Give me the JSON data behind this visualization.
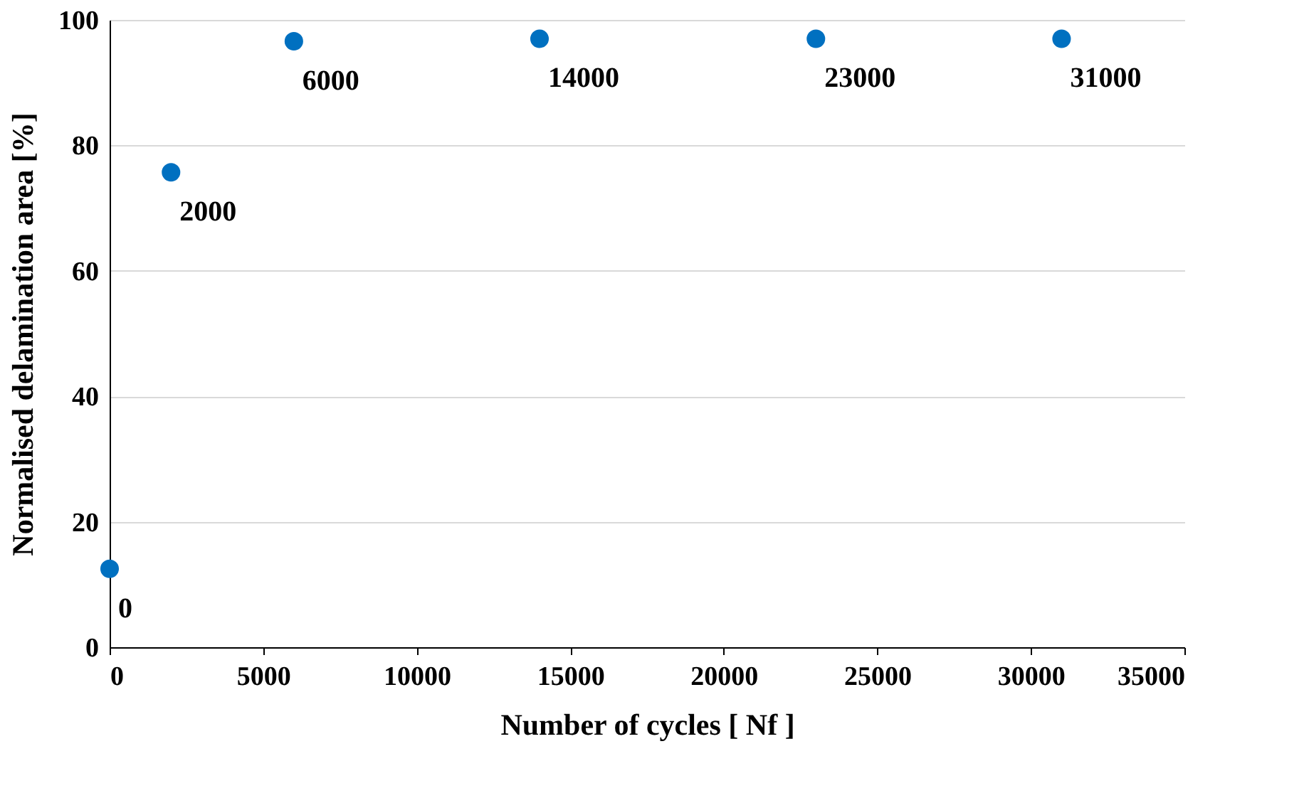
{
  "chart_data": {
    "type": "scatter",
    "xlabel": "Number of cycles [ Nf ]",
    "ylabel": "Normalised delamination area [%]",
    "x": [
      0,
      2000,
      6000,
      14000,
      23000,
      31000
    ],
    "series": [
      {
        "color": "#0070c0",
        "values": [
          12.5,
          75.7,
          96.6,
          97,
          97,
          97
        ]
      }
    ],
    "annotations": [
      {
        "text": "0",
        "x": 0,
        "y": 12.5
      },
      {
        "text": "2000",
        "x": 2000,
        "y": 75.7
      },
      {
        "text": "6000",
        "x": 6000,
        "y": 96.6
      },
      {
        "text": "14000",
        "x": 14000,
        "y": 97
      },
      {
        "text": "23000",
        "x": 23000,
        "y": 97
      },
      {
        "text": "31000",
        "x": 31000,
        "y": 97
      }
    ],
    "xlim": [
      0,
      35000
    ],
    "xticks": [
      0,
      5000,
      10000,
      15000,
      20000,
      25000,
      30000,
      35000
    ],
    "ylim": [
      0,
      100
    ],
    "yticks": [
      0,
      20,
      40,
      60,
      80,
      100
    ],
    "grid": "y",
    "marker": "circle"
  }
}
